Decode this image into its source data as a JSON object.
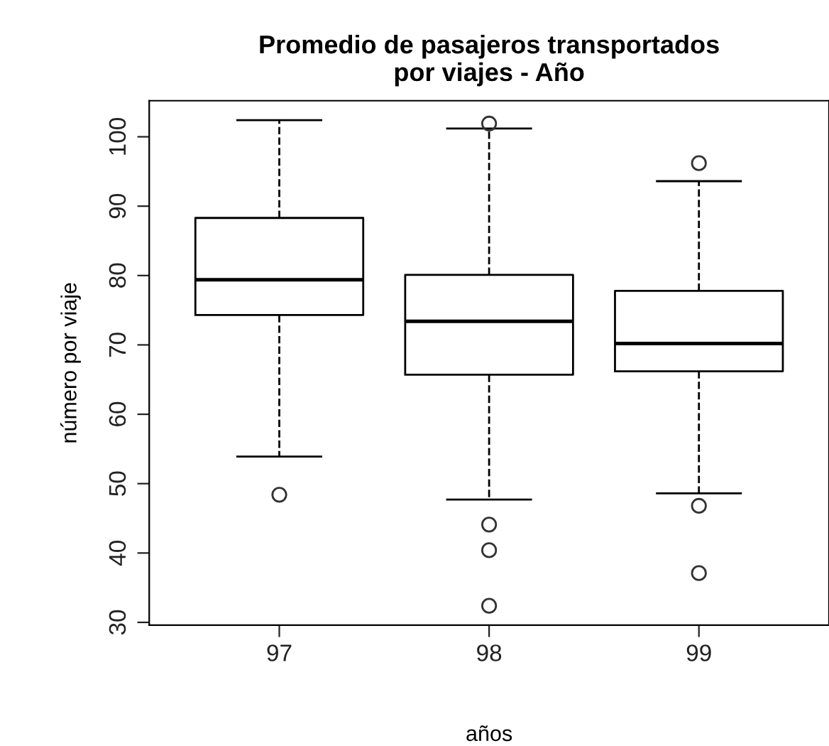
{
  "chart_data": {
    "type": "box",
    "title": "Promedio de pasajeros transportados\npor viajes - Año",
    "xlabel": "años",
    "ylabel": "número por viaje",
    "categories": [
      "97",
      "98",
      "99"
    ],
    "boxes": [
      {
        "low": 53.9,
        "q1": 74.3,
        "median": 79.4,
        "q3": 88.3,
        "high": 102.4,
        "outliers": [
          48.4
        ]
      },
      {
        "low": 47.7,
        "q1": 65.7,
        "median": 73.4,
        "q3": 80.1,
        "high": 101.2,
        "outliers": [
          101.9,
          44.1,
          40.4,
          32.4
        ]
      },
      {
        "low": 48.6,
        "q1": 66.2,
        "median": 70.2,
        "q3": 77.8,
        "high": 93.6,
        "outliers": [
          96.2,
          46.8,
          37.1
        ]
      }
    ],
    "ylim": [
      29.6,
      105.2
    ],
    "yticks": [
      30,
      40,
      50,
      60,
      70,
      80,
      90,
      100
    ],
    "grid": false,
    "legend": false,
    "line_style": "dashed",
    "marker": "circle"
  }
}
